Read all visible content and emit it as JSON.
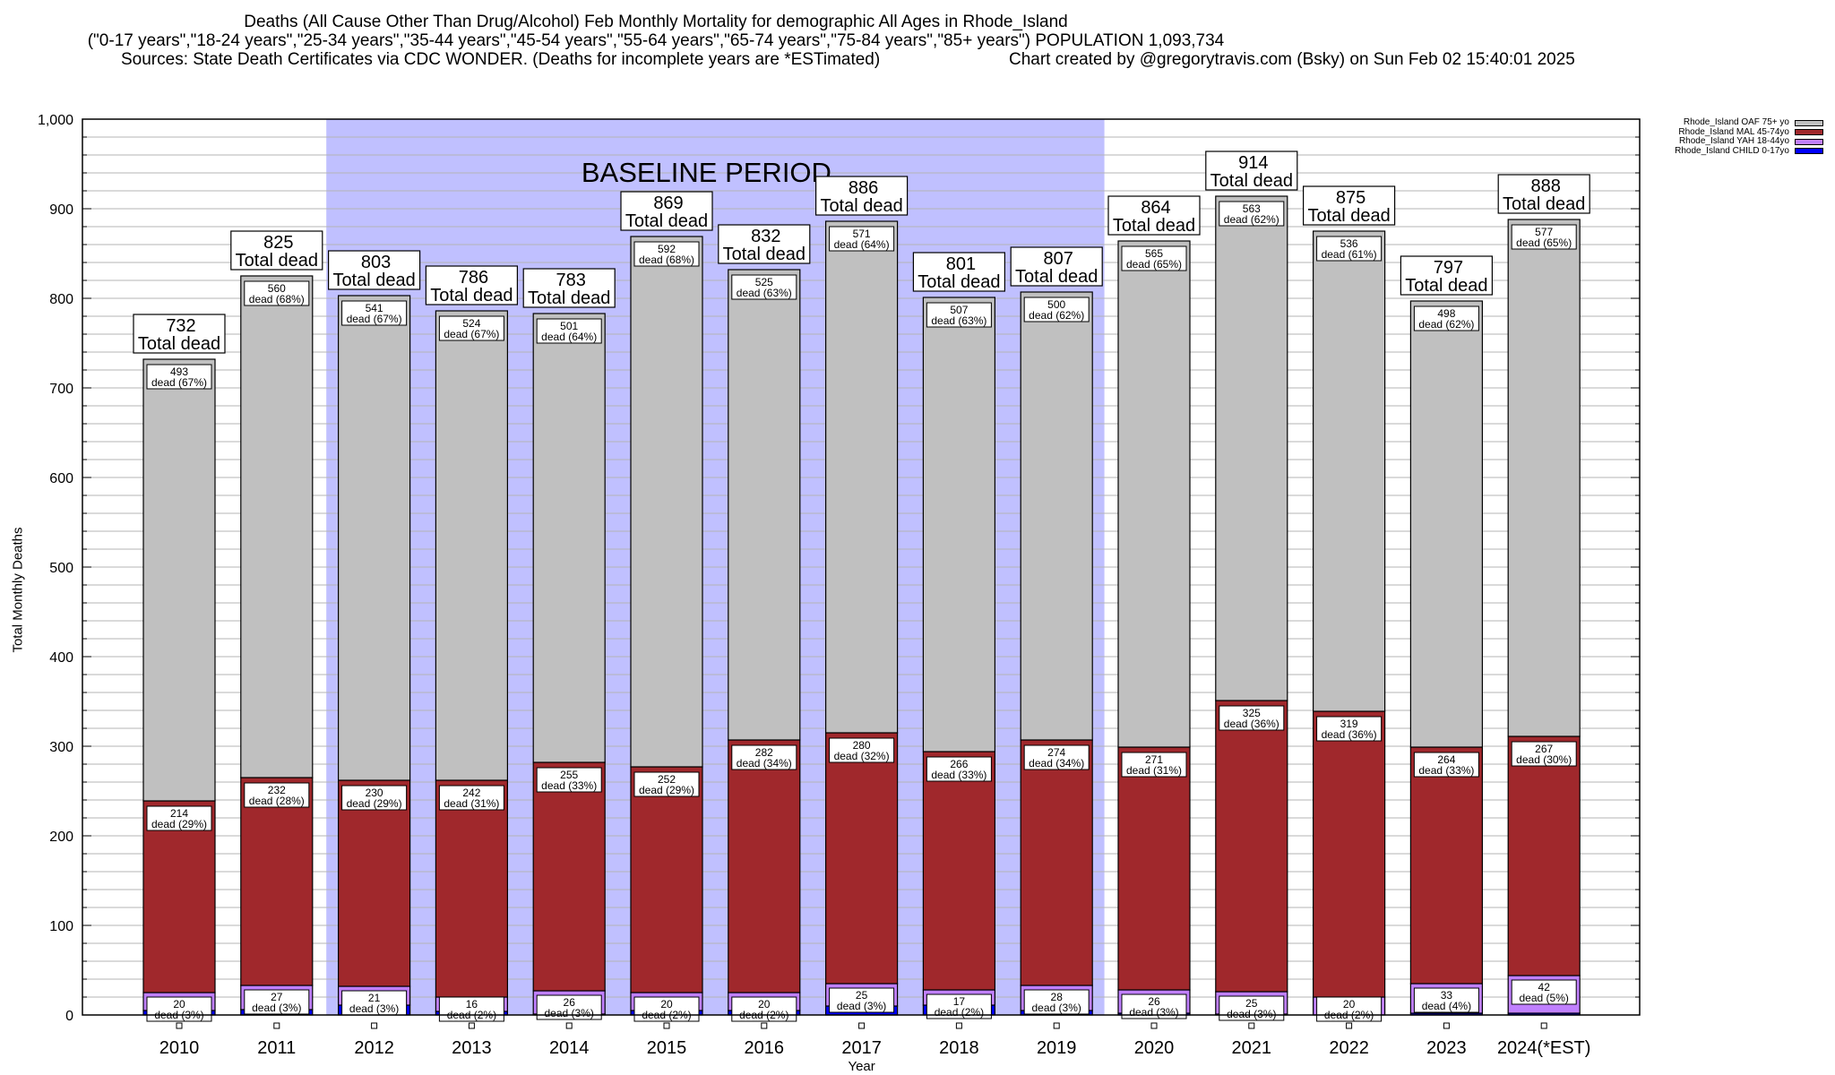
{
  "header": {
    "title_line1": "Deaths (All Cause Other Than Drug/Alcohol) Feb Monthly Mortality for demographic All Ages in Rhode_Island",
    "title_line2": "(\"0-17 years\",\"18-24 years\",\"25-34 years\",\"35-44 years\",\"45-54 years\",\"55-64 years\",\"65-74 years\",\"75-84 years\",\"85+ years\") POPULATION 1,093,734",
    "sources": "Sources: State Death Certificates via CDC WONDER. (Deaths for incomplete years are *ESTimated)",
    "credit": "Chart created by @gregorytravis.com (Bsky) on Sun Feb 02 15:40:01 2025"
  },
  "chart_data": {
    "type": "bar",
    "stacked": true,
    "title": "Deaths (All Cause Other Than Drug/Alcohol) Feb Monthly Mortality for demographic All Ages in Rhode_Island",
    "xlabel": "Year",
    "ylabel": "Total Monthly Deaths",
    "ylim": [
      0,
      1000
    ],
    "yticks": [
      0,
      100,
      200,
      300,
      400,
      500,
      600,
      700,
      800,
      900,
      1000
    ],
    "ytick_labels": [
      "0",
      "100",
      "200",
      "300",
      "400",
      "500",
      "600",
      "700",
      "800",
      "900",
      "1,000"
    ],
    "minor_grid_step": 20,
    "grid": true,
    "legend_position": "top-right",
    "categories": [
      "2010",
      "2011",
      "2012",
      "2013",
      "2014",
      "2015",
      "2016",
      "2017",
      "2018",
      "2019",
      "2020",
      "2021",
      "2022",
      "2023",
      "2024(*EST)"
    ],
    "baseline_period": {
      "label": "BASELINE PERIOD",
      "from": "2012",
      "to": "2019",
      "color": "#c0c0ff"
    },
    "total_label_suffix": "Total dead",
    "segment_label_prefix": "dead",
    "totals": [
      732,
      825,
      803,
      786,
      783,
      869,
      832,
      886,
      801,
      807,
      864,
      914,
      875,
      797,
      888
    ],
    "series": [
      {
        "name": "Rhode_Island CHILD 0-17yo",
        "color": "#0000ff",
        "values": [
          5,
          6,
          11,
          4,
          1,
          5,
          5,
          10,
          11,
          5,
          2,
          1,
          0,
          2,
          2
        ],
        "labeled": false
      },
      {
        "name": "Rhode_Island YAH 18-44yo",
        "color": "#c080ff",
        "values": [
          20,
          27,
          21,
          16,
          26,
          20,
          20,
          25,
          17,
          28,
          26,
          25,
          20,
          33,
          42
        ],
        "percents": [
          3,
          3,
          3,
          2,
          3,
          2,
          2,
          3,
          2,
          3,
          3,
          3,
          2,
          4,
          5
        ],
        "labeled": true
      },
      {
        "name": "Rhode_Island MAL 45-74yo",
        "color": "#a0282c",
        "values": [
          214,
          232,
          230,
          242,
          255,
          252,
          282,
          280,
          266,
          274,
          271,
          325,
          319,
          264,
          267
        ],
        "percents": [
          29,
          28,
          29,
          31,
          33,
          29,
          34,
          32,
          33,
          34,
          31,
          36,
          36,
          33,
          30
        ],
        "labeled": true
      },
      {
        "name": "Rhode_Island OAF 75+ yo",
        "color": "#c0c0c0",
        "values": [
          493,
          560,
          541,
          524,
          501,
          592,
          525,
          571,
          507,
          500,
          565,
          563,
          536,
          498,
          577
        ],
        "percents": [
          67,
          68,
          67,
          67,
          64,
          68,
          63,
          64,
          63,
          62,
          65,
          62,
          61,
          62,
          65
        ],
        "labeled": true
      }
    ],
    "legend_order": [
      "Rhode_Island OAF 75+ yo",
      "Rhode_Island MAL 45-74yo",
      "Rhode_Island YAH 18-44yo",
      "Rhode_Island CHILD 0-17yo"
    ]
  }
}
